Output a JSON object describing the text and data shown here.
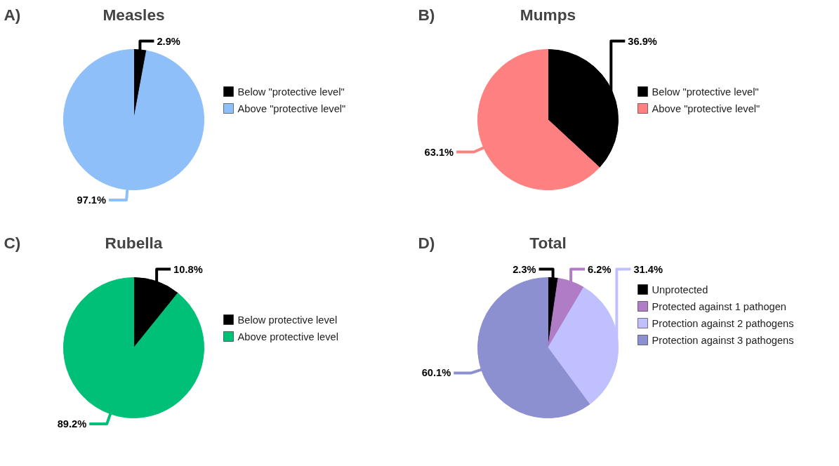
{
  "chart_data": [
    {
      "type": "pie",
      "title": "Measles",
      "annotations": [
        "A)"
      ],
      "categories": [
        "Below \"protective level\"",
        "Above \"protective level\""
      ],
      "values": [
        2.9,
        97.1
      ],
      "colors": [
        "#000000",
        "#8fbff9"
      ],
      "value_labels": [
        "2.9%",
        "97.1%"
      ],
      "legend": "right"
    },
    {
      "type": "pie",
      "title": "Mumps",
      "annotations": [
        "B)"
      ],
      "categories": [
        "Below \"protective level\"",
        "Above \"protective level\""
      ],
      "values": [
        36.9,
        63.1
      ],
      "colors": [
        "#000000",
        "#ff8080"
      ],
      "value_labels": [
        "36.9%",
        "63.1%"
      ],
      "legend": "right"
    },
    {
      "type": "pie",
      "title": "Rubella",
      "annotations": [
        "C)"
      ],
      "categories": [
        "Below protective level",
        "Above protective level"
      ],
      "values": [
        10.8,
        89.2
      ],
      "colors": [
        "#000000",
        "#00c078"
      ],
      "value_labels": [
        "10.8%",
        "89.2%"
      ],
      "legend": "right"
    },
    {
      "type": "pie",
      "title": "Total",
      "annotations": [
        "D)"
      ],
      "categories": [
        "Unprotected",
        "Protected against 1 pathogen",
        "Protection against 2 pathogens",
        "Protection against 3 pathogens"
      ],
      "values": [
        2.3,
        6.2,
        31.4,
        60.1
      ],
      "colors": [
        "#000000",
        "#b07cc6",
        "#c0c0ff",
        "#8c8fd0"
      ],
      "value_labels": [
        "2.3%",
        "6.2%",
        "31.4%",
        "60.1%"
      ],
      "legend": "right"
    }
  ]
}
